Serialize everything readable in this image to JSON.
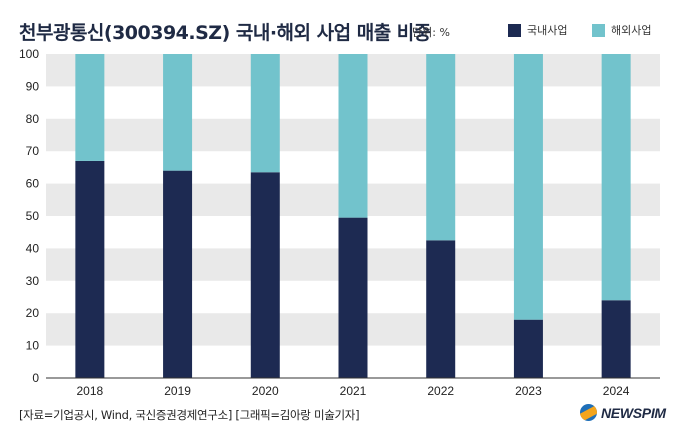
{
  "title": "천부광통신(300394.SZ) 국내·해외 사업 매출 비중",
  "unit_label": "단위: %",
  "source_note": "[자료=기업공시, Wind, 국신증권경제연구소] [그래픽=김아랑 미술기자]",
  "logo_text": "NEWSPIM",
  "colors": {
    "domestic": "#1d2a52",
    "overseas": "#72c3cc",
    "band": "#e9e9e9",
    "axis": "#333333"
  },
  "chart_data": {
    "type": "bar",
    "stacked": true,
    "categories": [
      "2018",
      "2019",
      "2020",
      "2021",
      "2022",
      "2023",
      "2024"
    ],
    "series": [
      {
        "name": "국내사업",
        "values": [
          67,
          64,
          63.5,
          49.5,
          42.5,
          18,
          24
        ]
      },
      {
        "name": "해외사업",
        "values": [
          33,
          36,
          36.5,
          50.5,
          57.5,
          82,
          76
        ]
      }
    ],
    "ylim": [
      0,
      100
    ],
    "yticks": [
      0,
      10,
      20,
      30,
      40,
      50,
      60,
      70,
      80,
      90,
      100
    ],
    "grid": "alternating horizontal bands",
    "legend_position": "top-right"
  }
}
